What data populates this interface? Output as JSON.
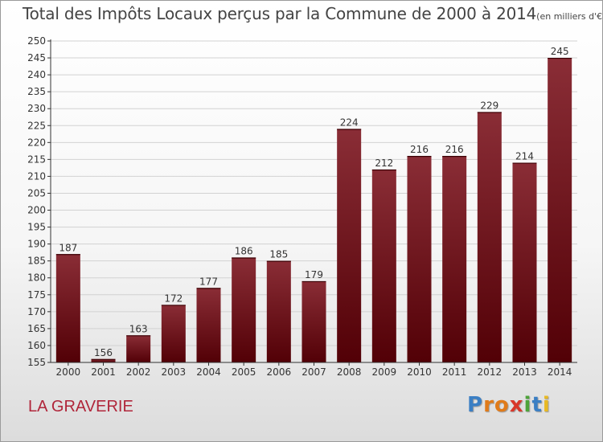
{
  "header": {
    "title": "Total des Impôts Locaux perçus par la Commune de 2000 à 2014",
    "unit": "(en milliers d'€)"
  },
  "footer": {
    "commune": "LA GRAVERIE",
    "brand": "Proxiti",
    "brand_letters": [
      {
        "char": "P",
        "color": "#3b7fc4"
      },
      {
        "char": "r",
        "color": "#e07b1a"
      },
      {
        "char": "o",
        "color": "#e07b1a"
      },
      {
        "char": "x",
        "color": "#d8372a"
      },
      {
        "char": "i",
        "color": "#4ea43a"
      },
      {
        "char": "t",
        "color": "#3b7fc4"
      },
      {
        "char": "i",
        "color": "#e8b923"
      }
    ]
  },
  "colors": {
    "bar_top": "#8a2d36",
    "bar_bottom": "#520006",
    "grid": "#d2d2d2",
    "axis": "#333333"
  },
  "chart_data": {
    "type": "bar",
    "title": "Total des Impôts Locaux perçus par la Commune de 2000 à 2014",
    "xlabel": "",
    "ylabel": "",
    "categories": [
      "2000",
      "2001",
      "2002",
      "2003",
      "2004",
      "2005",
      "2006",
      "2007",
      "2008",
      "2009",
      "2010",
      "2011",
      "2012",
      "2013",
      "2014"
    ],
    "values": [
      187,
      156,
      163,
      172,
      177,
      186,
      185,
      179,
      224,
      212,
      216,
      216,
      229,
      214,
      245
    ],
    "ylim": [
      155,
      250
    ],
    "ytick_step": 5,
    "grid": true
  }
}
